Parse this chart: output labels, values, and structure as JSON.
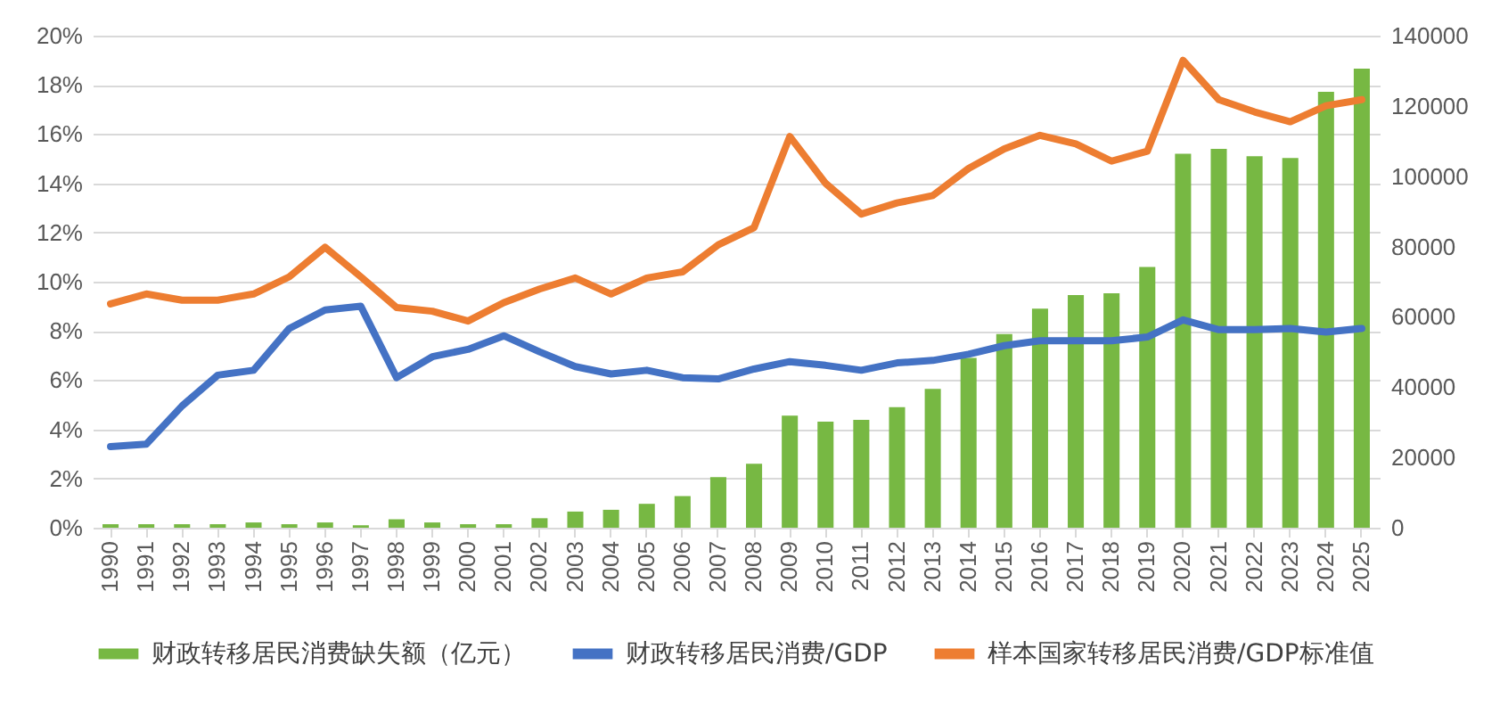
{
  "chart_data": {
    "type": "line",
    "categories": [
      "1990",
      "1991",
      "1992",
      "1993",
      "1994",
      "1995",
      "1996",
      "1997",
      "1998",
      "1999",
      "2000",
      "2001",
      "2002",
      "2003",
      "2004",
      "2005",
      "2006",
      "2007",
      "2008",
      "2009",
      "2010",
      "2011",
      "2012",
      "2013",
      "2014",
      "2015",
      "2016",
      "2017",
      "2018",
      "2019",
      "2020",
      "2021",
      "2022",
      "2023",
      "2024",
      "2025"
    ],
    "series": [
      {
        "name": "财政转移居民消费缺失额（亿元）",
        "type": "bar",
        "axis": "y2",
        "color": "#77b843",
        "values": [
          1000,
          1000,
          1000,
          1000,
          1500,
          1000,
          1500,
          700,
          2400,
          1500,
          1000,
          1000,
          2700,
          4600,
          5100,
          6800,
          9000,
          14400,
          18200,
          31900,
          30200,
          30700,
          34300,
          39500,
          48300,
          55100,
          62300,
          66200,
          66700,
          74200,
          106400,
          107800,
          105700,
          105200,
          124000,
          130600
        ]
      },
      {
        "name": "财政转移居民消费/GDP",
        "axis": "y",
        "color": "#4472c4",
        "values": [
          3.3,
          3.4,
          4.95,
          6.2,
          6.4,
          8.1,
          8.85,
          9.0,
          6.1,
          6.95,
          7.25,
          7.8,
          7.15,
          6.55,
          6.25,
          6.4,
          6.1,
          6.05,
          6.45,
          6.75,
          6.6,
          6.4,
          6.7,
          6.8,
          7.05,
          7.4,
          7.6,
          7.6,
          7.6,
          7.75,
          8.45,
          8.05,
          8.05,
          8.1,
          7.95,
          8.1
        ]
      },
      {
        "name": "样本国家转移居民消费/GDP标准值",
        "axis": "y",
        "color": "#ed7d31",
        "values": [
          9.1,
          9.5,
          9.25,
          9.25,
          9.5,
          10.2,
          11.4,
          10.2,
          8.95,
          8.8,
          8.4,
          9.15,
          9.7,
          10.15,
          9.5,
          10.15,
          10.4,
          11.5,
          12.2,
          15.9,
          14.0,
          12.75,
          13.2,
          13.5,
          14.6,
          15.4,
          15.95,
          15.6,
          14.9,
          15.3,
          19.0,
          17.4,
          16.9,
          16.5,
          17.15,
          17.4
        ]
      }
    ],
    "ylim": [
      0,
      20
    ],
    "yticks": [
      {
        "value": 0,
        "label": "0%"
      },
      {
        "value": 2,
        "label": "2%"
      },
      {
        "value": 4,
        "label": "4%"
      },
      {
        "value": 6,
        "label": "6%"
      },
      {
        "value": 8,
        "label": "8%"
      },
      {
        "value": 10,
        "label": "10%"
      },
      {
        "value": 12,
        "label": "12%"
      },
      {
        "value": 14,
        "label": "14%"
      },
      {
        "value": 16,
        "label": "16%"
      },
      {
        "value": 18,
        "label": "18%"
      },
      {
        "value": 20,
        "label": "20%"
      }
    ],
    "y2lim": [
      0,
      140000
    ],
    "y2ticks": [
      0,
      20000,
      40000,
      60000,
      80000,
      100000,
      120000,
      140000
    ],
    "grid": "y",
    "legend": "bottom"
  }
}
